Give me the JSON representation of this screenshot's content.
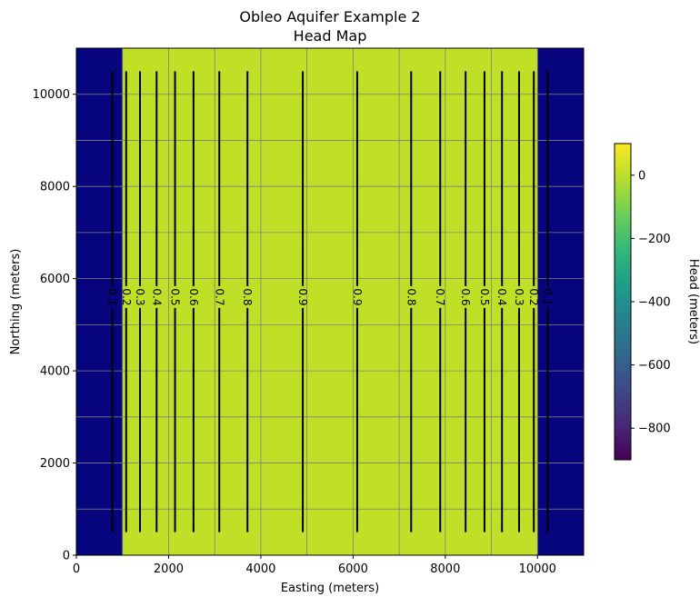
{
  "chart_data": {
    "type": "heatmap",
    "title_line1": "Obleo Aquifer Example 2",
    "title_line2": "Head Map",
    "xlabel": "Easting (meters)",
    "ylabel": "Northing (meters)",
    "xlim": [
      0,
      11000
    ],
    "ylim": [
      0,
      11000
    ],
    "x_ticks": [
      0,
      2000,
      4000,
      6000,
      8000,
      10000
    ],
    "y_ticks": [
      0,
      2000,
      4000,
      6000,
      8000,
      10000
    ],
    "grid": true,
    "grid_step": 1000,
    "regions": [
      {
        "x0": 0,
        "x1": 1000,
        "value": -900,
        "color": "#06057e"
      },
      {
        "x0": 1000,
        "x1": 10000,
        "value": 0.5,
        "color": "#bfe026"
      },
      {
        "x0": 10000,
        "x1": 11000,
        "value": -900,
        "color": "#06057e"
      }
    ],
    "contours": {
      "y_range": [
        500,
        10500
      ],
      "label_y": 5600,
      "lines": [
        {
          "x": 780,
          "label": "0.1"
        },
        {
          "x": 1080,
          "label": "0.2"
        },
        {
          "x": 1380,
          "label": "0.3"
        },
        {
          "x": 1740,
          "label": "0.4"
        },
        {
          "x": 2140,
          "label": "0.5"
        },
        {
          "x": 2540,
          "label": "0.6"
        },
        {
          "x": 3100,
          "label": "0.7"
        },
        {
          "x": 3710,
          "label": "0.8"
        },
        {
          "x": 4910,
          "label": "0.9"
        },
        {
          "x": 6090,
          "label": "0.9"
        },
        {
          "x": 7260,
          "label": "0.8"
        },
        {
          "x": 7890,
          "label": "0.7"
        },
        {
          "x": 8440,
          "label": "0.6"
        },
        {
          "x": 8850,
          "label": "0.5"
        },
        {
          "x": 9230,
          "label": "0.4"
        },
        {
          "x": 9600,
          "label": "0.3"
        },
        {
          "x": 9920,
          "label": "0.2"
        },
        {
          "x": 10220,
          "label": "0.1"
        }
      ]
    },
    "colorbar": {
      "label": "Head (meters)",
      "range": [
        -900,
        100
      ],
      "ticks": [
        -800,
        -600,
        -400,
        -200,
        0
      ],
      "tick_labels": [
        "−800",
        "−600",
        "−400",
        "−200",
        "0"
      ],
      "colormap": "viridis",
      "stops": [
        "#440154",
        "#482878",
        "#3e4989",
        "#31688e",
        "#26828e",
        "#1f9e89",
        "#35b779",
        "#6ece58",
        "#b5de2b",
        "#fde725"
      ]
    }
  }
}
